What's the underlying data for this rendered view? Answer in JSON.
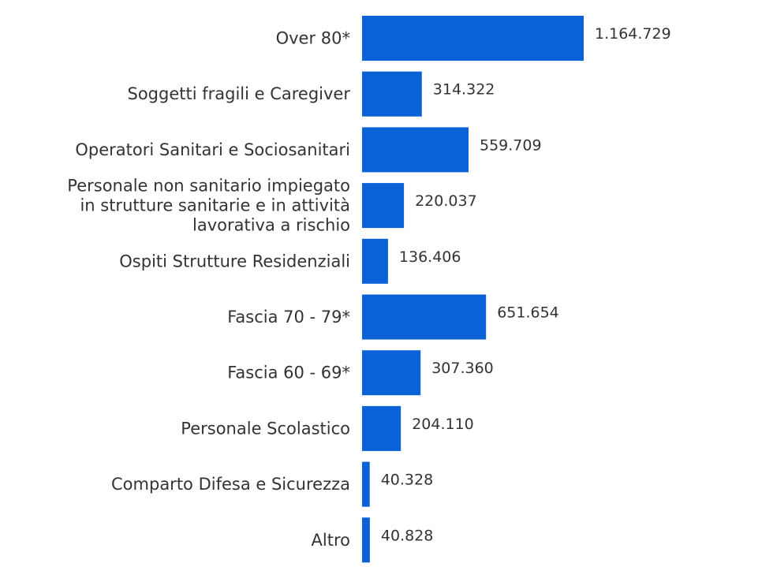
{
  "colors": {
    "bar": "#0b61d6",
    "text": "#333333",
    "background": "#ffffff"
  },
  "chart_data": {
    "type": "bar",
    "orientation": "horizontal",
    "title": "",
    "xlabel": "",
    "ylabel": "",
    "grid": false,
    "legend": "none",
    "xlim": [
      0,
      1400000
    ],
    "categories": [
      "Over 80*",
      "Soggetti fragili e Caregiver",
      "Operatori Sanitari e Sociosanitari",
      "Personale non sanitario impiegato in strutture sanitarie e in attività lavorativa a rischio",
      "Ospiti Strutture Residenziali",
      "Fascia 70 - 79*",
      "Fascia 60 - 69*",
      "Personale Scolastico",
      "Comparto Difesa e Sicurezza",
      "Altro"
    ],
    "category_lines": [
      [
        "Over 80*"
      ],
      [
        "Soggetti fragili e Caregiver"
      ],
      [
        "Operatori Sanitari e Sociosanitari"
      ],
      [
        "Personale non sanitario impiegato",
        "in strutture sanitarie e in attività",
        "lavorativa a rischio"
      ],
      [
        "Ospiti Strutture Residenziali"
      ],
      [
        "Fascia 70 - 79*"
      ],
      [
        "Fascia 60 - 69*"
      ],
      [
        "Personale Scolastico"
      ],
      [
        "Comparto Difesa e Sicurezza"
      ],
      [
        "Altro"
      ]
    ],
    "values": [
      1164729,
      314322,
      559709,
      220037,
      136406,
      651654,
      307360,
      204110,
      40328,
      40828
    ],
    "value_labels": [
      "1.164.729",
      "314.322",
      "559.709",
      "220.037",
      "136.406",
      "651.654",
      "307.360",
      "204.110",
      "40.328",
      "40.828"
    ]
  }
}
